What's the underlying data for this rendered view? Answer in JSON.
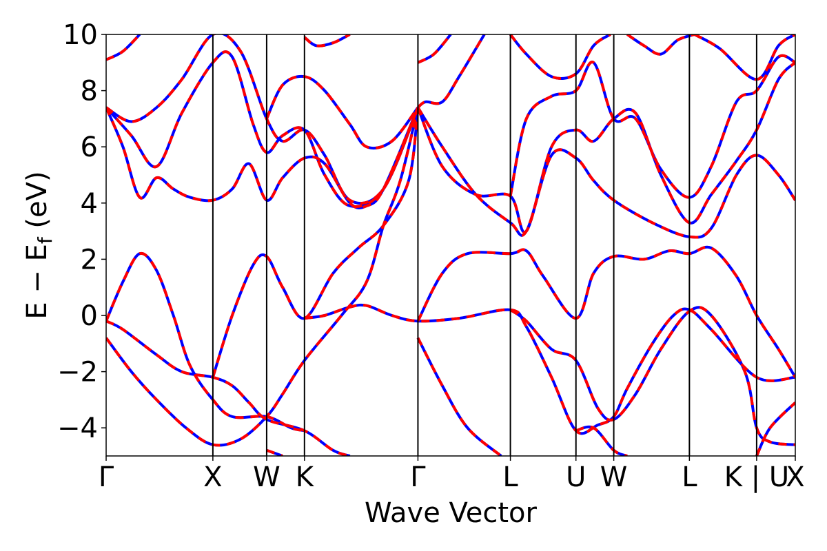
{
  "chart_data": {
    "type": "line",
    "title": "",
    "xlabel": "Wave Vector",
    "ylabel_main": "E − E",
    "ylabel_sub": "f",
    "ylabel_unit": " (eV)",
    "ylim": [
      -5,
      10
    ],
    "yticks": [
      -4,
      -2,
      0,
      2,
      4,
      6,
      8,
      10
    ],
    "ytick_labels": [
      "−4",
      "−2",
      "0",
      "2",
      "4",
      "6",
      "8",
      "10"
    ],
    "xlim": [
      0,
      8.2
    ],
    "kpoints": [
      {
        "label": "Γ",
        "x": 0
      },
      {
        "label": "X",
        "x": 1.27
      },
      {
        "label": "W",
        "x": 1.91
      },
      {
        "label": "K",
        "x": 2.36
      },
      {
        "label": "Γ",
        "x": 3.71
      },
      {
        "label": "L",
        "x": 4.81
      },
      {
        "label": "U",
        "x": 5.59
      },
      {
        "label": "W",
        "x": 6.04
      },
      {
        "label": "L",
        "x": 6.94
      },
      {
        "label": "K | U",
        "x": 7.74
      },
      {
        "label": "X",
        "x": 8.2
      }
    ],
    "series_styles": [
      {
        "color": "#0000ff",
        "dash": "none",
        "width": 4
      },
      {
        "color": "#ff0000",
        "dash": "12,10",
        "width": 4
      }
    ],
    "bands": [
      [
        [
          0,
          -0.8
        ],
        [
          0.3,
          -2.0
        ],
        [
          0.6,
          -3.0
        ],
        [
          0.95,
          -4.0
        ],
        [
          1.27,
          -4.6
        ],
        [
          1.6,
          -4.4
        ],
        [
          1.91,
          -3.6
        ],
        [
          2.1,
          -2.8
        ],
        [
          2.36,
          -1.6
        ],
        [
          2.8,
          0.0
        ],
        [
          3.1,
          1.2
        ],
        [
          3.3,
          3.2
        ],
        [
          3.5,
          4.8
        ],
        [
          3.71,
          7.4
        ]
      ],
      [
        [
          0,
          -0.2
        ],
        [
          0.2,
          -0.5
        ],
        [
          0.6,
          -1.4
        ],
        [
          0.9,
          -2.0
        ],
        [
          1.27,
          -2.2
        ],
        [
          1.5,
          -2.5
        ],
        [
          1.7,
          -3.1
        ],
        [
          1.91,
          -3.7
        ],
        [
          2.36,
          -4.1
        ],
        [
          2.7,
          -4.8
        ],
        [
          2.9,
          -5.0
        ]
      ],
      [
        [
          0,
          -0.2
        ],
        [
          0.2,
          1.2
        ],
        [
          0.4,
          2.2
        ],
        [
          0.6,
          1.6
        ],
        [
          0.8,
          0.0
        ],
        [
          1.0,
          -1.8
        ],
        [
          1.27,
          -3.0
        ],
        [
          1.5,
          -3.6
        ],
        [
          1.91,
          -3.6
        ],
        [
          2.2,
          -4.0
        ],
        [
          2.36,
          -4.1
        ]
      ],
      [
        [
          1.27,
          -2.2
        ],
        [
          1.5,
          0.0
        ],
        [
          1.75,
          1.8
        ],
        [
          1.91,
          2.1
        ],
        [
          2.1,
          1.0
        ],
        [
          2.36,
          -0.1
        ],
        [
          2.7,
          1.5
        ],
        [
          3.0,
          2.4
        ],
        [
          3.3,
          3.2
        ],
        [
          3.6,
          4.8
        ],
        [
          3.71,
          7.4
        ]
      ],
      [
        [
          2.36,
          -0.1
        ],
        [
          2.6,
          0.0
        ],
        [
          2.9,
          0.3
        ],
        [
          3.1,
          0.35
        ],
        [
          3.4,
          0.0
        ],
        [
          3.71,
          -0.2
        ],
        [
          4.2,
          -0.1
        ],
        [
          4.81,
          0.2
        ],
        [
          5.0,
          -0.4
        ],
        [
          5.3,
          -2.2
        ],
        [
          5.59,
          -4.1
        ],
        [
          5.85,
          -3.9
        ],
        [
          6.04,
          -3.6
        ],
        [
          6.2,
          -2.6
        ],
        [
          6.5,
          -1.0
        ],
        [
          6.75,
          0.0
        ],
        [
          6.94,
          0.2
        ],
        [
          7.2,
          -0.5
        ],
        [
          7.74,
          -2.2
        ],
        [
          8.2,
          -2.2
        ]
      ],
      [
        [
          3.71,
          -0.2
        ],
        [
          4.0,
          1.5
        ],
        [
          4.3,
          2.2
        ],
        [
          4.81,
          2.2
        ],
        [
          5.0,
          2.3
        ],
        [
          5.2,
          1.4
        ],
        [
          5.59,
          -0.1
        ],
        [
          5.8,
          1.5
        ],
        [
          6.04,
          2.1
        ],
        [
          6.4,
          2.0
        ],
        [
          6.7,
          2.3
        ],
        [
          6.94,
          2.2
        ],
        [
          7.2,
          2.4
        ],
        [
          7.5,
          1.4
        ],
        [
          7.74,
          0.0
        ],
        [
          8.0,
          -1.2
        ],
        [
          8.2,
          -2.2
        ]
      ],
      [
        [
          3.71,
          -0.8
        ],
        [
          4.0,
          -2.5
        ],
        [
          4.3,
          -4.0
        ],
        [
          4.7,
          -5.0
        ]
      ],
      [
        [
          4.81,
          0.2
        ],
        [
          5.0,
          -0.2
        ],
        [
          5.3,
          -1.2
        ],
        [
          5.59,
          -1.6
        ],
        [
          5.85,
          -3.3
        ],
        [
          6.04,
          -3.7
        ],
        [
          6.3,
          -2.8
        ],
        [
          6.6,
          -1.2
        ],
        [
          6.94,
          0.15
        ],
        [
          7.2,
          0.0
        ],
        [
          7.6,
          -2.0
        ],
        [
          7.74,
          -4.0
        ],
        [
          7.9,
          -4.5
        ],
        [
          8.2,
          -4.6
        ]
      ],
      [
        [
          0,
          7.4
        ],
        [
          0.2,
          6.0
        ],
        [
          0.4,
          4.2
        ],
        [
          0.6,
          4.9
        ],
        [
          0.8,
          4.5
        ],
        [
          1.0,
          4.2
        ],
        [
          1.27,
          4.1
        ],
        [
          1.5,
          4.5
        ],
        [
          1.7,
          5.4
        ],
        [
          1.91,
          4.1
        ],
        [
          2.1,
          4.9
        ],
        [
          2.36,
          5.6
        ],
        [
          2.6,
          5.4
        ],
        [
          2.9,
          4.0
        ],
        [
          3.1,
          3.9
        ],
        [
          3.3,
          4.5
        ],
        [
          3.71,
          7.4
        ]
      ],
      [
        [
          0,
          7.4
        ],
        [
          0.3,
          6.4
        ],
        [
          0.6,
          5.3
        ],
        [
          0.9,
          7.2
        ],
        [
          1.27,
          9.0
        ],
        [
          1.5,
          9.2
        ],
        [
          1.75,
          6.8
        ],
        [
          1.91,
          5.8
        ],
        [
          2.1,
          6.4
        ],
        [
          2.36,
          6.6
        ],
        [
          2.6,
          5.0
        ],
        [
          2.9,
          3.9
        ],
        [
          3.3,
          4.5
        ],
        [
          3.71,
          7.4
        ]
      ],
      [
        [
          0,
          7.4
        ],
        [
          0.3,
          6.9
        ],
        [
          0.6,
          7.4
        ],
        [
          0.9,
          8.4
        ],
        [
          1.27,
          10.0
        ],
        [
          1.6,
          9.4
        ],
        [
          1.91,
          7.0
        ],
        [
          2.1,
          6.2
        ],
        [
          2.36,
          6.6
        ],
        [
          2.6,
          5.7
        ],
        [
          2.9,
          4.1
        ],
        [
          3.3,
          4.5
        ],
        [
          3.71,
          7.4
        ]
      ],
      [
        [
          1.91,
          7.0
        ],
        [
          2.1,
          8.2
        ],
        [
          2.36,
          8.5
        ],
        [
          2.6,
          8.0
        ],
        [
          2.9,
          6.8
        ],
        [
          3.1,
          6.0
        ],
        [
          3.4,
          6.2
        ],
        [
          3.71,
          7.4
        ]
      ],
      [
        [
          3.71,
          7.4
        ],
        [
          4.0,
          5.3
        ],
        [
          4.4,
          4.3
        ],
        [
          4.81,
          4.25
        ],
        [
          5.0,
          3.0
        ],
        [
          5.3,
          6.0
        ],
        [
          5.59,
          6.6
        ],
        [
          5.8,
          6.2
        ],
        [
          6.04,
          7.0
        ],
        [
          6.3,
          7.2
        ],
        [
          6.6,
          5.0
        ],
        [
          6.94,
          3.3
        ],
        [
          7.2,
          4.3
        ],
        [
          7.5,
          5.5
        ],
        [
          7.74,
          6.6
        ],
        [
          8.0,
          8.4
        ],
        [
          8.2,
          9.0
        ]
      ],
      [
        [
          3.71,
          7.4
        ],
        [
          4.0,
          6.0
        ],
        [
          4.4,
          4.3
        ],
        [
          4.81,
          3.3
        ],
        [
          5.0,
          3.0
        ],
        [
          5.3,
          5.7
        ],
        [
          5.59,
          5.6
        ],
        [
          5.8,
          4.8
        ],
        [
          6.04,
          4.1
        ],
        [
          6.5,
          3.3
        ],
        [
          6.94,
          2.8
        ],
        [
          7.2,
          3.1
        ],
        [
          7.5,
          5.0
        ],
        [
          7.74,
          5.7
        ],
        [
          8.0,
          5.0
        ],
        [
          8.2,
          4.1
        ]
      ],
      [
        [
          3.71,
          7.4
        ],
        [
          3.8,
          7.6
        ],
        [
          4.0,
          7.6
        ],
        [
          4.2,
          8.5
        ],
        [
          4.5,
          10.0
        ]
      ],
      [
        [
          3.71,
          9.0
        ],
        [
          3.9,
          9.3
        ],
        [
          4.1,
          10.0
        ]
      ],
      [
        [
          4.81,
          10.0
        ],
        [
          5.0,
          9.3
        ],
        [
          5.3,
          8.5
        ],
        [
          5.59,
          8.6
        ],
        [
          5.8,
          9.6
        ],
        [
          6.0,
          10.0
        ]
      ],
      [
        [
          4.81,
          4.25
        ],
        [
          5.0,
          7.0
        ],
        [
          5.3,
          7.8
        ],
        [
          5.59,
          8.0
        ],
        [
          5.8,
          9.0
        ],
        [
          6.04,
          7.0
        ],
        [
          6.3,
          7.0
        ],
        [
          6.6,
          5.2
        ],
        [
          6.94,
          4.2
        ],
        [
          7.2,
          5.3
        ],
        [
          7.5,
          7.6
        ],
        [
          7.74,
          8.0
        ],
        [
          8.0,
          9.2
        ],
        [
          8.2,
          9.0
        ]
      ],
      [
        [
          6.2,
          10.0
        ],
        [
          6.4,
          9.6
        ],
        [
          6.6,
          9.3
        ],
        [
          6.8,
          9.8
        ],
        [
          7.0,
          10.0
        ]
      ],
      [
        [
          7.0,
          10.0
        ],
        [
          7.3,
          9.5
        ],
        [
          7.74,
          8.4
        ],
        [
          8.0,
          9.6
        ],
        [
          8.2,
          10.0
        ]
      ],
      [
        [
          0,
          9.1
        ],
        [
          0.2,
          9.4
        ],
        [
          0.4,
          10.0
        ]
      ],
      [
        [
          2.36,
          9.9
        ],
        [
          2.5,
          9.6
        ],
        [
          2.7,
          9.7
        ],
        [
          2.9,
          10.0
        ]
      ],
      [
        [
          5.59,
          -4.1
        ],
        [
          5.8,
          -4.0
        ],
        [
          6.04,
          -4.8
        ],
        [
          6.2,
          -5.0
        ]
      ],
      [
        [
          1.91,
          -4.8
        ],
        [
          2.1,
          -5.0
        ]
      ],
      [
        [
          7.74,
          -5.0
        ],
        [
          7.9,
          -4.0
        ],
        [
          8.2,
          -3.1
        ]
      ]
    ]
  }
}
